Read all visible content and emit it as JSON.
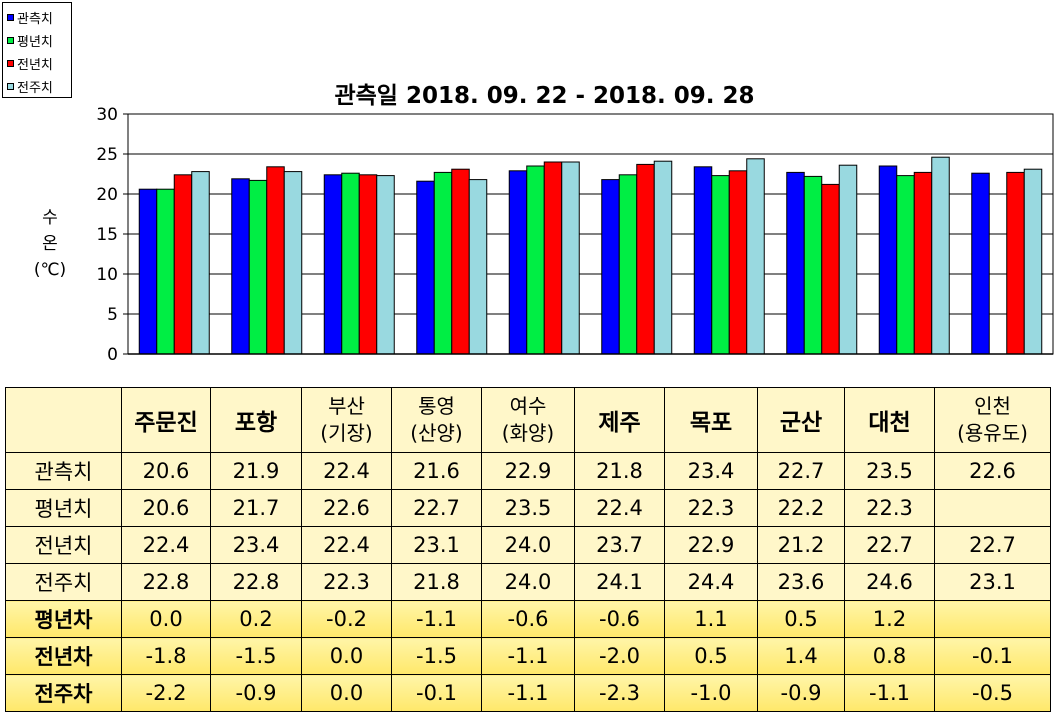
{
  "chart_data": {
    "type": "bar",
    "title": "관측일 2018. 09. 22 - 2018. 09. 28",
    "ylabel": [
      "수",
      "온",
      "(℃)"
    ],
    "ylim": [
      0,
      30
    ],
    "yticks": [
      "0",
      "5",
      "10",
      "15",
      "20",
      "25",
      "30"
    ],
    "grid": "horizontal",
    "legend_position": "top-left",
    "categories": [
      "주문진",
      "포항",
      "부산",
      "통영",
      "여수",
      "제주",
      "목포",
      "군산",
      "대천",
      "인천"
    ],
    "series": [
      {
        "name": "관측치",
        "color": "#0000ff",
        "values": [
          20.6,
          21.9,
          22.4,
          21.6,
          22.9,
          21.8,
          23.4,
          22.7,
          23.5,
          22.6
        ]
      },
      {
        "name": "평년치",
        "color": "#00ee44",
        "values": [
          20.6,
          21.7,
          22.6,
          22.7,
          23.5,
          22.4,
          22.3,
          22.2,
          22.3,
          null
        ]
      },
      {
        "name": "전년치",
        "color": "#ff0000",
        "values": [
          22.4,
          23.4,
          22.4,
          23.1,
          24.0,
          23.7,
          22.9,
          21.2,
          22.7,
          22.7
        ]
      },
      {
        "name": "전주치",
        "color": "#99d9e0",
        "values": [
          22.8,
          22.8,
          22.3,
          21.8,
          24.0,
          24.1,
          24.4,
          23.6,
          24.6,
          23.1
        ]
      }
    ]
  },
  "legend": [
    {
      "label": "관측치",
      "color": "#0000ff"
    },
    {
      "label": "평년치",
      "color": "#00ee44"
    },
    {
      "label": "전년치",
      "color": "#ff0000"
    },
    {
      "label": "전주치",
      "color": "#99d9e0"
    }
  ],
  "table": {
    "stations": [
      [
        "주문진"
      ],
      [
        "포항"
      ],
      [
        "부산",
        "(기장)"
      ],
      [
        "통영",
        "(산양)"
      ],
      [
        "여수",
        "(화양)"
      ],
      [
        "제주"
      ],
      [
        "목포"
      ],
      [
        "군산"
      ],
      [
        "대천"
      ],
      [
        "인천",
        "(용유도)"
      ]
    ],
    "rows": [
      {
        "label": "관측치",
        "diff": false,
        "values": [
          "20.6",
          "21.9",
          "22.4",
          "21.6",
          "22.9",
          "21.8",
          "23.4",
          "22.7",
          "23.5",
          "22.6"
        ]
      },
      {
        "label": "평년치",
        "diff": false,
        "values": [
          "20.6",
          "21.7",
          "22.6",
          "22.7",
          "23.5",
          "22.4",
          "22.3",
          "22.2",
          "22.3",
          ""
        ]
      },
      {
        "label": "전년치",
        "diff": false,
        "values": [
          "22.4",
          "23.4",
          "22.4",
          "23.1",
          "24.0",
          "23.7",
          "22.9",
          "21.2",
          "22.7",
          "22.7"
        ]
      },
      {
        "label": "전주치",
        "diff": false,
        "values": [
          "22.8",
          "22.8",
          "22.3",
          "21.8",
          "24.0",
          "24.1",
          "24.4",
          "23.6",
          "24.6",
          "23.1"
        ]
      },
      {
        "label": "평년차",
        "diff": true,
        "values": [
          "0.0",
          "0.2",
          "-0.2",
          "-1.1",
          "-0.6",
          "-0.6",
          "1.1",
          "0.5",
          "1.2",
          ""
        ]
      },
      {
        "label": "전년차",
        "diff": true,
        "values": [
          "-1.8",
          "-1.5",
          "0.0",
          "-1.5",
          "-1.1",
          "-2.0",
          "0.5",
          "1.4",
          "0.8",
          "-0.1"
        ]
      },
      {
        "label": "전주차",
        "diff": true,
        "values": [
          "-2.2",
          "-0.9",
          "0.0",
          "-0.1",
          "-1.1",
          "-2.3",
          "-1.0",
          "-0.9",
          "-1.1",
          "-0.5"
        ]
      }
    ]
  }
}
